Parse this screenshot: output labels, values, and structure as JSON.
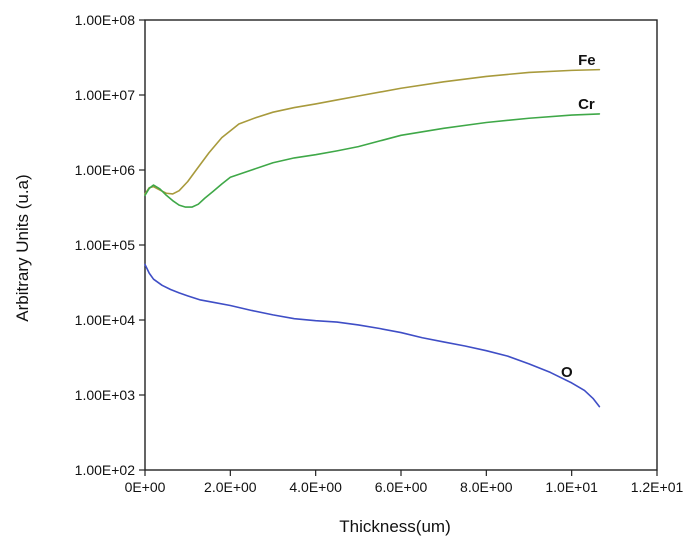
{
  "chart_data": {
    "type": "line",
    "title": "",
    "xlabel": "Thickness(um)",
    "ylabel": "Arbitrary  Units (u.a)",
    "xlim": [
      0,
      12
    ],
    "ylim": [
      100,
      100000000
    ],
    "yscale": "log",
    "grid": false,
    "legend": "none",
    "x_ticks": [
      0,
      2,
      4,
      6,
      8,
      10,
      12
    ],
    "x_tick_labels": [
      "0E+00",
      "2.0E+00",
      "4.0E+00",
      "6.0E+00",
      "8.0E+00",
      "1.0E+01",
      "1.2E+01"
    ],
    "y_ticks": [
      100,
      1000,
      10000,
      100000,
      1000000,
      10000000,
      100000000
    ],
    "y_tick_labels": [
      "1.00E+02",
      "1.00E+03",
      "1.00E+04",
      "1.00E+05",
      "1.00E+06",
      "1.00E+07",
      "1.00E+08"
    ],
    "series": [
      {
        "name": "Fe",
        "color": "#a89a3c",
        "label_at": [
          10.15,
          25000000
        ],
        "x": [
          0,
          0.1,
          0.2,
          0.35,
          0.5,
          0.65,
          0.8,
          1.0,
          1.2,
          1.5,
          1.8,
          2.2,
          2.6,
          3.0,
          3.5,
          4.0,
          4.5,
          5.0,
          6.0,
          7.0,
          8.0,
          9.0,
          10.0,
          10.65
        ],
        "y": [
          480000,
          580000,
          600000,
          540000,
          490000,
          480000,
          530000,
          700000,
          1000000,
          1700000,
          2700000,
          4100000,
          5000000,
          5900000,
          6800000,
          7600000,
          8600000,
          9700000,
          12300000,
          15000000,
          17700000,
          20000000,
          21300000,
          21800000
        ]
      },
      {
        "name": "Cr",
        "color": "#3fa848",
        "label_at": [
          10.15,
          6500000
        ],
        "x": [
          0,
          0.1,
          0.2,
          0.35,
          0.5,
          0.65,
          0.8,
          0.95,
          1.1,
          1.25,
          1.4,
          1.6,
          1.8,
          2.0,
          2.5,
          3.0,
          3.5,
          4.0,
          4.5,
          5.0,
          6.0,
          7.0,
          8.0,
          9.0,
          10.0,
          10.65
        ],
        "y": [
          460000,
          570000,
          630000,
          560000,
          460000,
          390000,
          340000,
          320000,
          320000,
          350000,
          420000,
          520000,
          650000,
          800000,
          1000000,
          1250000,
          1450000,
          1600000,
          1800000,
          2050000,
          2900000,
          3600000,
          4300000,
          4900000,
          5400000,
          5600000
        ]
      },
      {
        "name": "O",
        "color": "#3f4ec6",
        "label_at": [
          9.75,
          1750
        ],
        "x": [
          0,
          0.1,
          0.2,
          0.4,
          0.6,
          0.8,
          1.0,
          1.3,
          1.6,
          2.0,
          2.5,
          3.0,
          3.5,
          4.0,
          4.5,
          5.0,
          5.5,
          6.0,
          6.5,
          7.0,
          7.5,
          8.0,
          8.5,
          9.0,
          9.5,
          10.0,
          10.3,
          10.5,
          10.65
        ],
        "y": [
          55000,
          42000,
          35000,
          29000,
          25500,
          23000,
          21000,
          18500,
          17200,
          15600,
          13400,
          11700,
          10400,
          9800,
          9400,
          8600,
          7700,
          6800,
          5800,
          5100,
          4500,
          3900,
          3300,
          2600,
          2000,
          1450,
          1150,
          900,
          700
        ]
      }
    ]
  }
}
